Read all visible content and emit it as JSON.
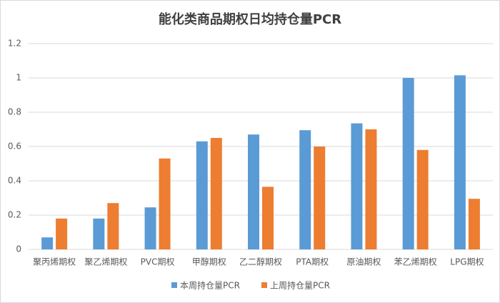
{
  "chart_data": {
    "type": "bar",
    "title": "能化类商品期权日均持仓量PCR",
    "categories": [
      "聚丙烯期权",
      "聚乙烯期权",
      "PVC期权",
      "甲醇期权",
      "乙二醇期权",
      "PTA期权",
      "原油期权",
      "苯乙烯期权",
      "LPG期权"
    ],
    "series": [
      {
        "name": "本周持仓量PCR",
        "color": "#5b9bd5",
        "values": [
          0.07,
          0.18,
          0.245,
          0.63,
          0.67,
          0.695,
          0.735,
          1.0,
          1.015
        ]
      },
      {
        "name": "上周持仓量PCR",
        "color": "#ed7d31",
        "values": [
          0.18,
          0.27,
          0.53,
          0.65,
          0.365,
          0.6,
          0.7,
          0.58,
          0.295
        ]
      }
    ],
    "ylim": [
      0,
      1.2
    ],
    "yticks": [
      0,
      0.2,
      0.4,
      0.6,
      0.8,
      1,
      1.2
    ],
    "grid": true,
    "legend": "bottom"
  }
}
